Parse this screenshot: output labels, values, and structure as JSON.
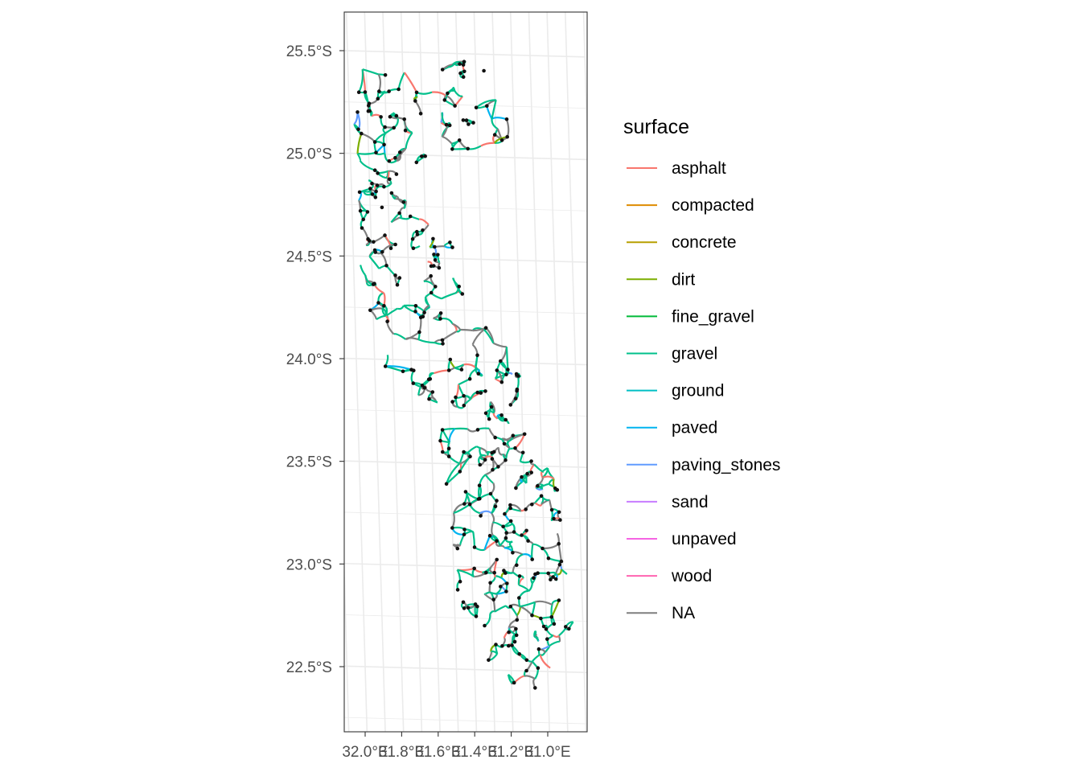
{
  "chart_data": {
    "type": "map",
    "projection_note": "",
    "y_axis": {
      "ticks": [
        {
          "value": -25.5,
          "label": "25.5°S"
        },
        {
          "value": -25.0,
          "label": "25.0°S"
        },
        {
          "value": -24.5,
          "label": "24.5°S"
        },
        {
          "value": -24.0,
          "label": "24.0°S"
        },
        {
          "value": -23.5,
          "label": "23.5°S"
        },
        {
          "value": -23.0,
          "label": "23.0°S"
        },
        {
          "value": -22.5,
          "label": "22.5°S"
        }
      ]
    },
    "x_axis": {
      "ticks": [
        {
          "value": 32.0,
          "label": "32.0°E"
        },
        {
          "value": 31.8,
          "label": "31.8°E"
        },
        {
          "value": 31.6,
          "label": "31.6°E"
        },
        {
          "value": 31.4,
          "label": "31.4°E"
        },
        {
          "value": 31.2,
          "label": "31.2°E"
        },
        {
          "value": 31.0,
          "label": "31.0°E"
        }
      ]
    },
    "legend": {
      "title": "surface",
      "position": "right",
      "items": [
        {
          "label": "asphalt",
          "color": "#F8766D"
        },
        {
          "label": "compacted",
          "color": "#DE8C00"
        },
        {
          "label": "concrete",
          "color": "#B79F00"
        },
        {
          "label": "dirt",
          "color": "#7CAE00"
        },
        {
          "label": "fine_gravel",
          "color": "#00BA38"
        },
        {
          "label": "gravel",
          "color": "#00C08B"
        },
        {
          "label": "ground",
          "color": "#00BFC4"
        },
        {
          "label": "paved",
          "color": "#00B4F0"
        },
        {
          "label": "paving_stones",
          "color": "#619CFF"
        },
        {
          "label": "sand",
          "color": "#C77CFF"
        },
        {
          "label": "unpaved",
          "color": "#F564E3"
        },
        {
          "label": "wood",
          "color": "#FF64B0"
        },
        {
          "label": "NA",
          "color": "#7F7F7F"
        }
      ]
    },
    "grid": true,
    "panel_border": true
  }
}
